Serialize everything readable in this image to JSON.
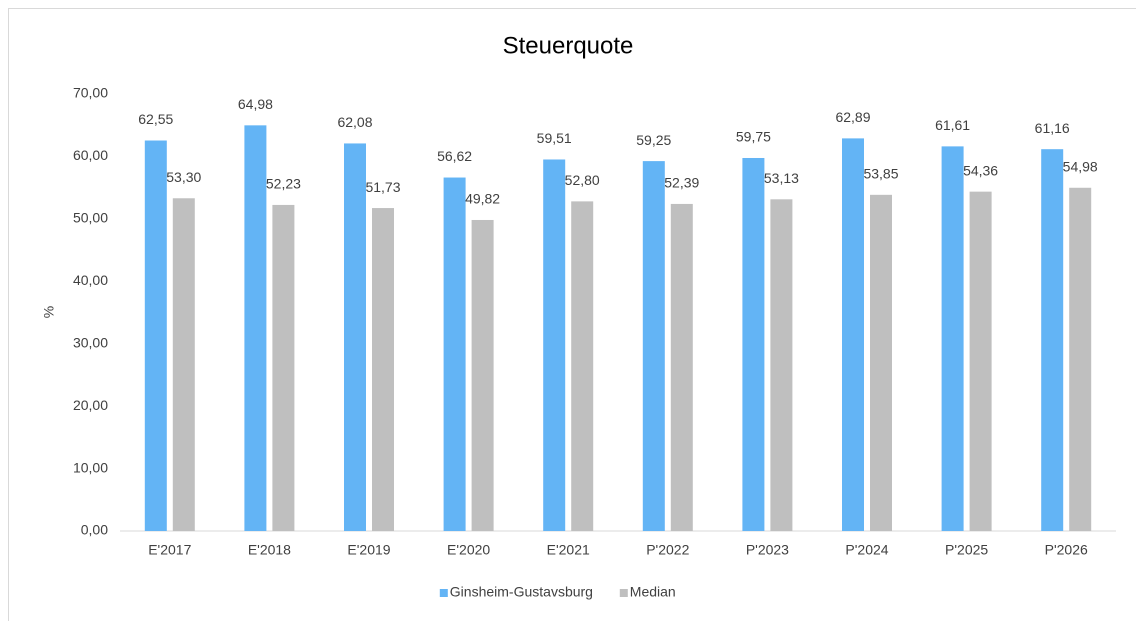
{
  "chart_data": {
    "type": "bar",
    "title": "Steuerquote",
    "y_label": "%",
    "categories": [
      "E'2017",
      "E'2018",
      "E'2019",
      "E'2020",
      "E'2021",
      "P'2022",
      "P'2023",
      "P'2024",
      "P'2025",
      "P'2026"
    ],
    "series": [
      {
        "name": "Ginsheim-Gustavsburg",
        "color": "#63b4f5",
        "values": [
          62.55,
          64.98,
          62.08,
          56.62,
          59.51,
          59.25,
          59.75,
          62.89,
          61.61,
          61.16
        ],
        "value_labels": [
          "62,55",
          "64,98",
          "62,08",
          "56,62",
          "59,51",
          "59,25",
          "59,75",
          "62,89",
          "61,61",
          "61,16"
        ]
      },
      {
        "name": "Median",
        "color": "#bfbfbf",
        "values": [
          53.3,
          52.23,
          51.73,
          49.82,
          52.8,
          52.39,
          53.13,
          53.85,
          54.36,
          54.98
        ],
        "value_labels": [
          "53,30",
          "52,23",
          "51,73",
          "49,82",
          "52,80",
          "52,39",
          "53,13",
          "53,85",
          "54,36",
          "54,98"
        ]
      }
    ],
    "ylim": [
      0,
      70
    ],
    "yticks": [
      {
        "value": 0,
        "label": "0,00"
      },
      {
        "value": 10,
        "label": "10,00"
      },
      {
        "value": 20,
        "label": "20,00"
      },
      {
        "value": 30,
        "label": "30,00"
      },
      {
        "value": 40,
        "label": "40,00"
      },
      {
        "value": 50,
        "label": "50,00"
      },
      {
        "value": 60,
        "label": "60,00"
      },
      {
        "value": 70,
        "label": "70,00"
      }
    ],
    "grid": false,
    "legend": "bottom"
  }
}
